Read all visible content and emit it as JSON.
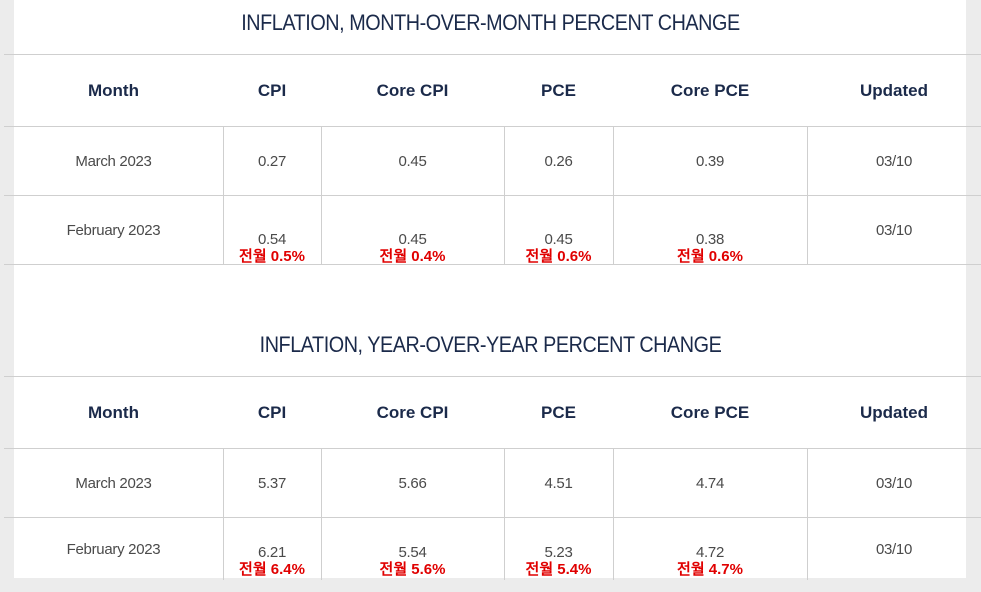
{
  "tables": [
    {
      "title": "INFLATION, MONTH-OVER-MONTH PERCENT CHANGE",
      "headers": [
        "Month",
        "CPI",
        "Core CPI",
        "PCE",
        "Core PCE",
        "Updated"
      ],
      "rows": [
        {
          "month": "March 2023",
          "cpi": "0.27",
          "core_cpi": "0.45",
          "pce": "0.26",
          "core_pce": "0.39",
          "updated": "03/10"
        },
        {
          "month": "February 2023",
          "cpi": "0.54",
          "core_cpi": "0.45",
          "pce": "0.45",
          "core_pce": "0.38",
          "updated": "03/10",
          "notes": {
            "cpi": "전월 0.5%",
            "core_cpi": "전월 0.4%",
            "pce": "전월 0.6%",
            "core_pce": "전월 0.6%"
          }
        }
      ]
    },
    {
      "title": "INFLATION, YEAR-OVER-YEAR PERCENT CHANGE",
      "headers": [
        "Month",
        "CPI",
        "Core CPI",
        "PCE",
        "Core PCE",
        "Updated"
      ],
      "rows": [
        {
          "month": "March 2023",
          "cpi": "5.37",
          "core_cpi": "5.66",
          "pce": "4.51",
          "core_pce": "4.74",
          "updated": "03/10"
        },
        {
          "month": "February 2023",
          "cpi": "6.21",
          "core_cpi": "5.54",
          "pce": "5.23",
          "core_pce": "4.72",
          "updated": "03/10",
          "notes": {
            "cpi": "전월 6.4%",
            "core_cpi": "전월 5.6%",
            "pce": "전월 5.4%",
            "core_pce": "전월 4.7%"
          }
        }
      ]
    }
  ],
  "colors": {
    "title": "#1b2a4a",
    "note": "#e00000",
    "value": "#4a4a4a"
  }
}
